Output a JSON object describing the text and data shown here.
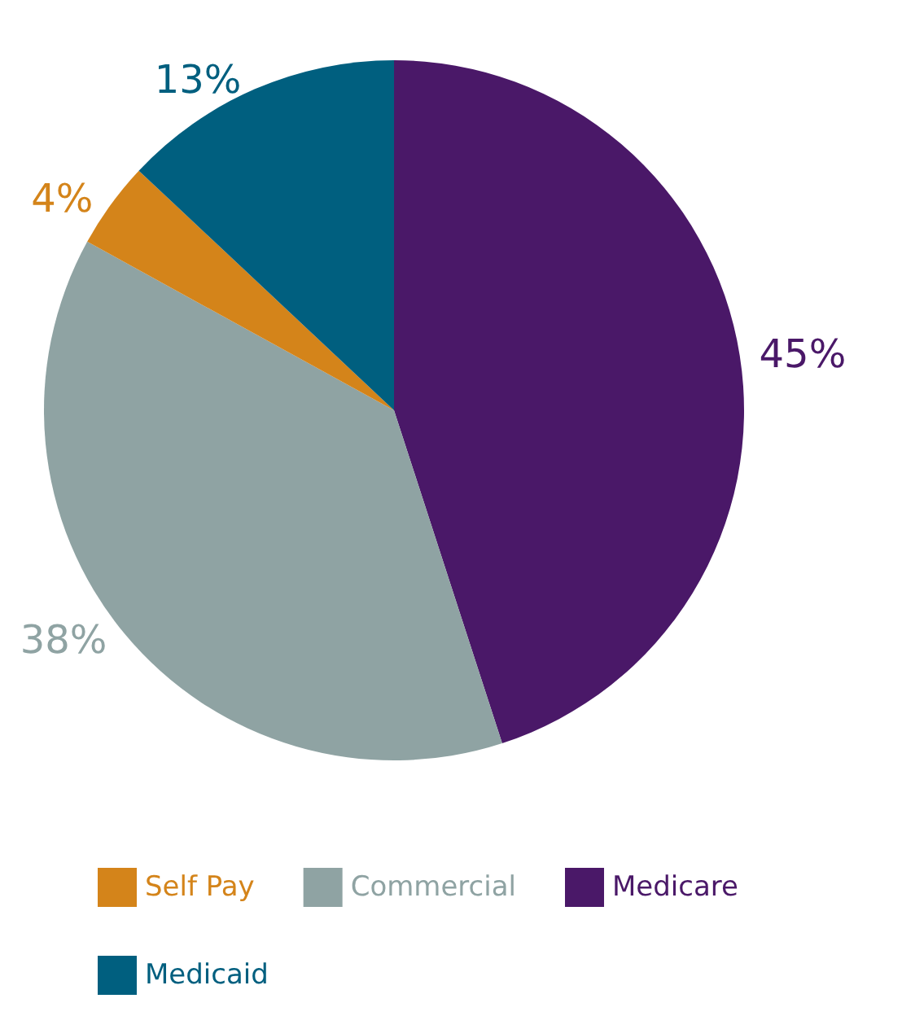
{
  "chart_data": {
    "type": "pie",
    "categories": [
      "Medicare",
      "Commercial",
      "Self Pay",
      "Medicaid"
    ],
    "values": [
      45,
      38,
      4,
      13
    ],
    "colors": [
      "#4a1868",
      "#8fa3a3",
      "#d4841a",
      "#005f7f"
    ],
    "value_labels": [
      "45%",
      "38%",
      "4%",
      "13%"
    ],
    "legend": "bottom"
  }
}
